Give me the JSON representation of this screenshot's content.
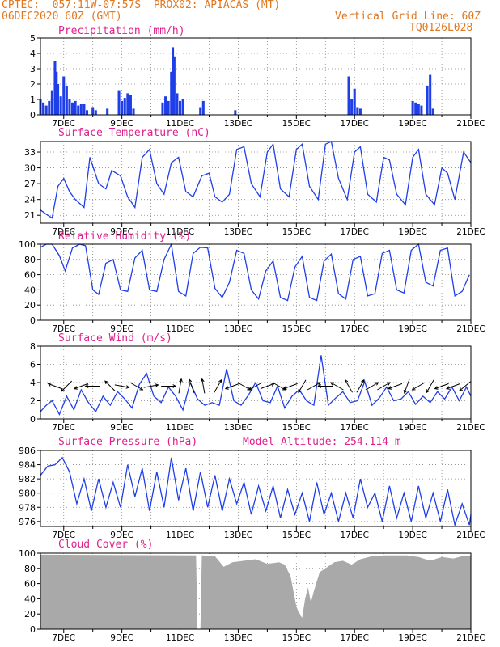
{
  "header": {
    "line1_left": "CPTEC:  057:11W-07:57S  PROX02: APIACAS (MT)",
    "line2_left": "06DEC2020 60Z (GMT)",
    "line2_right": "Vertical Grid Line: 60Z",
    "line3_right": "TQ0126L028",
    "altitude_label": "Model Altitude: 254.114 m"
  },
  "colors": {
    "header": "#e07820",
    "panel_title": "#e0208c",
    "line": "#1e3ee8",
    "bar": "#1e3ee8",
    "cloud": "#a9a9a9",
    "grid": "#888888"
  },
  "x_ticks": [
    "7DEC",
    "9DEC",
    "11DEC",
    "13DEC",
    "15DEC",
    "17DEC",
    "19DEC",
    "21DEC"
  ],
  "chart_data": [
    {
      "type": "bar",
      "title": "Precipitation (mm/h)",
      "ylim": [
        0,
        5
      ],
      "yticks": [
        0,
        1,
        2,
        3,
        4,
        5
      ],
      "x_range_days": [
        6.2,
        21
      ],
      "x": [
        6.2,
        6.3,
        6.4,
        6.5,
        6.6,
        6.7,
        6.75,
        6.8,
        6.9,
        7.0,
        7.1,
        7.2,
        7.3,
        7.4,
        7.5,
        7.6,
        7.7,
        7.8,
        8.0,
        8.1,
        8.5,
        8.9,
        9.0,
        9.1,
        9.2,
        9.3,
        9.4,
        10.4,
        10.5,
        10.6,
        10.7,
        10.75,
        10.8,
        10.9,
        11.0,
        11.1,
        11.7,
        11.8,
        12.9,
        16.8,
        16.9,
        17.0,
        17.1,
        17.2,
        19.0,
        19.1,
        19.2,
        19.3,
        19.5,
        19.6,
        19.7
      ],
      "values": [
        1.0,
        0.8,
        0.6,
        0.9,
        1.6,
        3.5,
        2.8,
        2.0,
        1.2,
        2.5,
        1.9,
        1.0,
        0.8,
        0.9,
        0.6,
        0.7,
        0.7,
        0.3,
        0.5,
        0.3,
        0.4,
        1.6,
        0.9,
        1.1,
        1.4,
        1.3,
        0.4,
        0.8,
        1.2,
        0.9,
        2.8,
        4.4,
        3.8,
        1.4,
        0.9,
        1.0,
        0.5,
        0.9,
        0.3,
        2.5,
        1.0,
        1.7,
        0.5,
        0.4,
        0.9,
        0.8,
        0.7,
        0.6,
        1.9,
        2.6,
        0.4
      ]
    },
    {
      "type": "line",
      "title": "Surface Temperature (nC)",
      "ylim": [
        19.5,
        35
      ],
      "yticks": [
        21,
        24,
        27,
        30,
        33
      ],
      "x_range_days": [
        6.2,
        21
      ],
      "x": [
        6.2,
        6.4,
        6.6,
        6.8,
        7.0,
        7.2,
        7.4,
        7.7,
        7.9,
        8.2,
        8.45,
        8.65,
        8.95,
        9.2,
        9.45,
        9.7,
        9.95,
        10.2,
        10.45,
        10.7,
        10.95,
        11.2,
        11.45,
        11.75,
        12.0,
        12.2,
        12.45,
        12.7,
        12.95,
        13.2,
        13.45,
        13.75,
        14.0,
        14.2,
        14.45,
        14.75,
        15.0,
        15.2,
        15.45,
        15.75,
        16.0,
        16.2,
        16.45,
        16.75,
        17.0,
        17.2,
        17.45,
        17.75,
        18.0,
        18.2,
        18.45,
        18.75,
        19.0,
        19.2,
        19.45,
        19.75,
        20.0,
        20.2,
        20.45,
        20.75,
        21.0
      ],
      "values": [
        22.0,
        21.2,
        20.5,
        26.5,
        28.0,
        25.5,
        24.0,
        22.5,
        32.0,
        27.0,
        26.0,
        29.5,
        28.5,
        24.5,
        22.5,
        32.0,
        33.5,
        27.0,
        25.0,
        31.0,
        32.0,
        25.5,
        24.5,
        28.5,
        29.0,
        24.5,
        23.5,
        25.0,
        33.5,
        34.0,
        27.0,
        24.5,
        33.0,
        34.5,
        26.0,
        24.5,
        33.5,
        34.5,
        26.5,
        24.0,
        34.5,
        35.0,
        28.0,
        24.0,
        33.0,
        34.0,
        25.0,
        23.5,
        32.0,
        31.5,
        25.0,
        23.0,
        32.0,
        33.5,
        25.0,
        23.0,
        30.0,
        29.0,
        24.0,
        33.0,
        31.0
      ]
    },
    {
      "type": "line",
      "title": "Relative Humidity (%)",
      "ylim": [
        0,
        100
      ],
      "yticks": [
        0,
        20,
        40,
        60,
        80,
        100
      ],
      "x_range_days": [
        6.2,
        21
      ],
      "x": [
        6.2,
        6.4,
        6.6,
        6.85,
        7.05,
        7.3,
        7.55,
        7.75,
        8.0,
        8.2,
        8.45,
        8.7,
        8.95,
        9.2,
        9.45,
        9.7,
        9.95,
        10.2,
        10.45,
        10.7,
        10.95,
        11.2,
        11.45,
        11.7,
        11.95,
        12.2,
        12.45,
        12.7,
        12.95,
        13.2,
        13.45,
        13.7,
        13.95,
        14.2,
        14.45,
        14.7,
        14.95,
        15.2,
        15.45,
        15.7,
        15.95,
        16.2,
        16.45,
        16.7,
        16.95,
        17.2,
        17.45,
        17.7,
        17.95,
        18.2,
        18.45,
        18.7,
        18.95,
        19.2,
        19.45,
        19.7,
        19.95,
        20.2,
        20.45,
        20.7,
        20.95
      ],
      "values": [
        96,
        100,
        100,
        85,
        65,
        95,
        100,
        98,
        40,
        34,
        75,
        80,
        40,
        38,
        82,
        92,
        40,
        38,
        80,
        100,
        38,
        32,
        88,
        96,
        95,
        42,
        30,
        50,
        92,
        88,
        40,
        28,
        65,
        78,
        30,
        26,
        70,
        84,
        30,
        26,
        78,
        87,
        35,
        28,
        80,
        84,
        32,
        35,
        88,
        92,
        40,
        36,
        92,
        100,
        50,
        45,
        92,
        95,
        32,
        38,
        60
      ]
    },
    {
      "type": "line",
      "title": "Surface Wind (m/s)",
      "ylim": [
        0,
        8
      ],
      "yticks": [
        0,
        2,
        4,
        6,
        8
      ],
      "x_range_days": [
        6.2,
        21
      ],
      "x": [
        6.2,
        6.4,
        6.6,
        6.85,
        7.1,
        7.35,
        7.6,
        7.85,
        8.1,
        8.35,
        8.6,
        8.85,
        9.1,
        9.35,
        9.6,
        9.85,
        10.1,
        10.35,
        10.6,
        10.85,
        11.1,
        11.35,
        11.6,
        11.85,
        12.1,
        12.35,
        12.6,
        12.85,
        13.1,
        13.35,
        13.6,
        13.85,
        14.1,
        14.35,
        14.6,
        14.85,
        15.1,
        15.35,
        15.6,
        15.85,
        16.1,
        16.35,
        16.6,
        16.85,
        17.1,
        17.35,
        17.6,
        17.85,
        18.1,
        18.35,
        18.6,
        18.85,
        19.1,
        19.35,
        19.6,
        19.85,
        20.1,
        20.35,
        20.6,
        20.85,
        21.0
      ],
      "values": [
        0.8,
        1.5,
        2.0,
        0.5,
        2.5,
        1.0,
        3.2,
        1.8,
        0.8,
        2.5,
        1.5,
        3.0,
        2.2,
        1.2,
        3.8,
        5.0,
        2.5,
        1.8,
        3.5,
        2.5,
        1.0,
        4.0,
        2.2,
        1.5,
        1.8,
        1.5,
        5.5,
        2.0,
        1.5,
        2.6,
        4.0,
        2.0,
        1.8,
        3.6,
        1.2,
        2.5,
        3.2,
        2.0,
        1.5,
        7.0,
        1.5,
        2.3,
        3.0,
        1.8,
        2.0,
        4.1,
        1.5,
        2.3,
        3.5,
        2.0,
        2.2,
        3.0,
        1.6,
        2.5,
        1.8,
        3.0,
        2.2,
        3.5,
        2.0,
        3.5,
        2.5
      ],
      "arrows": {
        "x": [
          6.7,
          7.1,
          7.6,
          8.0,
          8.6,
          9.0,
          9.5,
          10.0,
          10.6,
          11.0,
          11.4,
          11.8,
          12.3,
          12.8,
          13.2,
          13.6,
          14.0,
          14.4,
          14.8,
          15.2,
          15.6,
          16.0,
          16.4,
          16.8,
          17.2,
          17.6,
          18.0,
          18.4,
          18.8,
          19.2,
          19.6,
          20.0,
          20.4,
          20.8
        ],
        "dir_deg": [
          160,
          225,
          200,
          180,
          135,
          350,
          330,
          10,
          0,
          80,
          110,
          100,
          60,
          200,
          330,
          210,
          20,
          330,
          200,
          240,
          30,
          180,
          150,
          120,
          60,
          30,
          30,
          200,
          250,
          210,
          240,
          200,
          200,
          220
        ]
      }
    },
    {
      "type": "line",
      "title": "Surface Pressure (hPa)",
      "ylim": [
        975.3,
        986
      ],
      "yticks": [
        976,
        978,
        980,
        982,
        984,
        986
      ],
      "x_range_days": [
        6.2,
        21
      ],
      "x": [
        6.2,
        6.45,
        6.7,
        6.95,
        7.2,
        7.45,
        7.7,
        7.95,
        8.2,
        8.45,
        8.7,
        8.95,
        9.2,
        9.45,
        9.7,
        9.95,
        10.2,
        10.45,
        10.7,
        10.95,
        11.2,
        11.45,
        11.7,
        11.95,
        12.2,
        12.45,
        12.7,
        12.95,
        13.2,
        13.45,
        13.7,
        13.95,
        14.2,
        14.45,
        14.7,
        14.95,
        15.2,
        15.45,
        15.7,
        15.95,
        16.2,
        16.45,
        16.7,
        16.95,
        17.2,
        17.45,
        17.7,
        17.95,
        18.2,
        18.45,
        18.7,
        18.95,
        19.2,
        19.45,
        19.7,
        19.95,
        20.2,
        20.45,
        20.7,
        20.95,
        21.0
      ],
      "values": [
        982.5,
        983.8,
        984.0,
        985.0,
        983.0,
        978.5,
        982.0,
        977.5,
        982.0,
        978.0,
        981.5,
        978.0,
        984.0,
        979.5,
        983.5,
        977.5,
        983.0,
        978.0,
        985.0,
        979.0,
        983.5,
        977.5,
        983.0,
        978.0,
        982.5,
        977.5,
        982.0,
        978.5,
        981.5,
        977.0,
        981.0,
        977.5,
        981.0,
        976.5,
        980.5,
        977.0,
        980.0,
        976.0,
        981.5,
        977.0,
        980.0,
        976.0,
        980.0,
        976.5,
        982.0,
        978.0,
        980.0,
        976.0,
        981.0,
        976.5,
        980.0,
        976.0,
        981.0,
        976.5,
        980.0,
        976.0,
        980.5,
        975.5,
        978.5,
        975.5,
        977.0
      ]
    },
    {
      "type": "area",
      "title": "Cloud Cover (%)",
      "ylim": [
        0,
        100
      ],
      "yticks": [
        0,
        20,
        40,
        60,
        80,
        100
      ],
      "x_range_days": [
        6.2,
        21
      ],
      "x": [
        6.2,
        11.55,
        11.6,
        11.7,
        11.75,
        12.2,
        12.5,
        12.8,
        13.2,
        13.6,
        14.0,
        14.4,
        14.6,
        14.8,
        15.0,
        15.1,
        15.2,
        15.3,
        15.4,
        15.5,
        15.6,
        15.8,
        16.0,
        16.3,
        16.6,
        16.9,
        17.2,
        17.6,
        18.0,
        18.4,
        18.8,
        19.2,
        19.6,
        20.0,
        20.4,
        20.7,
        21.0
      ],
      "values": [
        98,
        97,
        0,
        0,
        97,
        96,
        82,
        88,
        90,
        92,
        86,
        88,
        85,
        70,
        30,
        20,
        15,
        40,
        55,
        35,
        50,
        75,
        80,
        88,
        90,
        85,
        92,
        96,
        97,
        97,
        97,
        95,
        90,
        95,
        93,
        96,
        97
      ]
    }
  ]
}
